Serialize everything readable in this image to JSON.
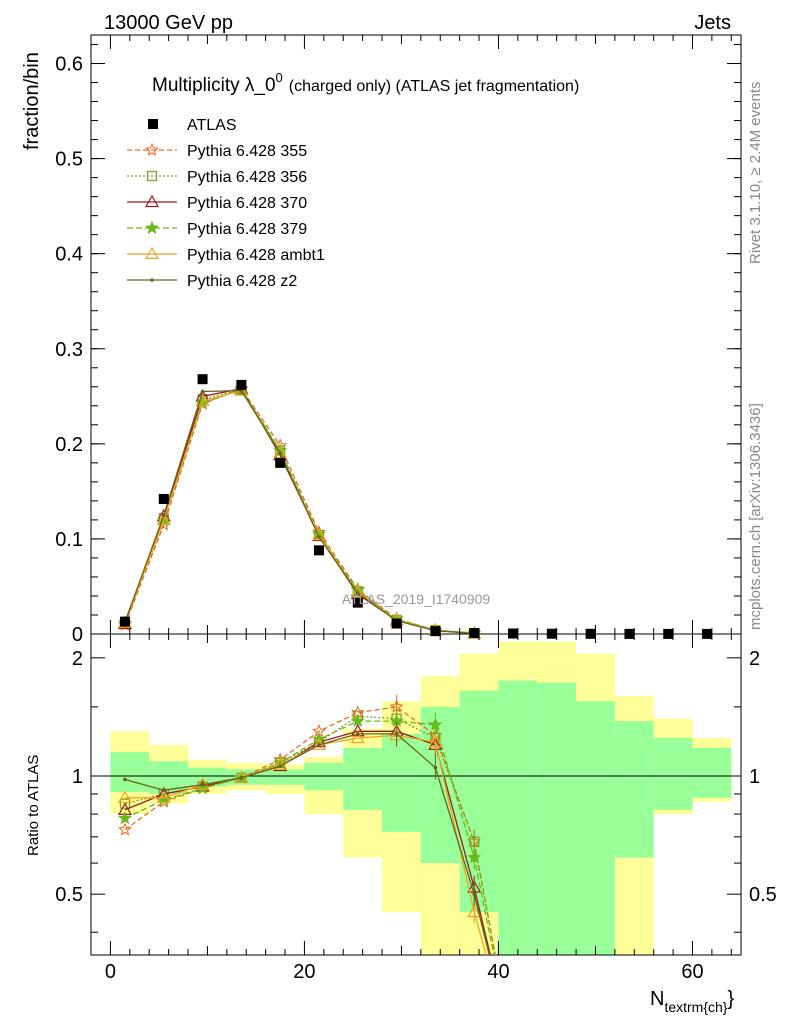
{
  "header": {
    "left": "13000 GeV pp",
    "right": "Jets"
  },
  "side_labels": {
    "rivet": "Rivet 3.1.10, ≥ 2.4M events",
    "mcplots": "mcplots.cern.ch [arXiv:1306.3436]"
  },
  "chart_data": {
    "type": "line",
    "title": "Multiplicity λ_0⁰ (charged only) (ATLAS jet fragmentation)",
    "title_main": "Multiplicity λ_0",
    "title_sup": "0",
    "title_rest": "(charged only) (ATLAS jet fragmentation)",
    "watermark": "ATLAS_2019_I1740909",
    "xlabel": "N",
    "xlabel_sub": "textrm{ch}",
    "xlabel_close": "}",
    "ylabel": "fraction/bin",
    "ratio_ylabel": "Ratio to ATLAS",
    "xlim": [
      -2,
      65
    ],
    "ylim": [
      0,
      0.63
    ],
    "ratio_ylim": [
      0.35,
      2.3
    ],
    "main_yticks": [
      0,
      0.1,
      0.2,
      0.3,
      0.4,
      0.5,
      0.6
    ],
    "main_ytick_labels": [
      "0",
      "0.1",
      "0.2",
      "0.3",
      "0.4",
      "0.5",
      "0.6"
    ],
    "xticks": [
      0,
      20,
      40,
      60
    ],
    "xtick_labels": [
      "0",
      "20",
      "40",
      "60"
    ],
    "ratio_yticks": [
      0.5,
      1,
      2
    ],
    "ratio_ytick_labels": [
      "0.5",
      "1",
      "2"
    ],
    "x": [
      1.5,
      5.5,
      9.5,
      13.5,
      17.5,
      21.5,
      25.5,
      29.5,
      33.5,
      37.5,
      41.5,
      45.5,
      49.5,
      53.5,
      57.5,
      61.5
    ],
    "bin_edges": [
      0,
      4,
      8,
      12,
      16,
      20,
      24,
      28,
      32,
      36,
      40,
      44,
      48,
      52,
      56,
      60,
      64
    ],
    "data": {
      "name": "ATLAS",
      "color": "#000000",
      "values": [
        0.013,
        0.142,
        0.268,
        0.262,
        0.18,
        0.088,
        0.033,
        0.011,
        0.003,
        0.001,
        0.0005,
        0.0003,
        0.0002,
        0.0001,
        0.0001,
        0.0001
      ]
    },
    "band_inner": [
      1.15,
      1.1,
      1.06,
      1.05,
      1.04,
      1.08,
      1.18,
      1.28,
      1.45,
      1.62,
      1.75,
      1.72,
      1.55,
      1.4,
      1.25,
      1.15,
      1.0,
      0.91,
      0.9,
      0.94,
      0.95,
      0.95,
      0.94,
      0.88,
      0.78,
      0.68,
      0.5,
      0.3,
      0.2,
      0.2,
      0.5,
      0.75,
      0.85
    ],
    "band_outer": [
      1.3,
      1.2,
      1.1,
      1.08,
      1.07,
      1.12,
      1.3,
      1.55,
      1.8,
      2.0,
      2.1,
      2.05,
      1.85,
      1.6,
      1.4,
      1.25,
      1.0,
      0.8,
      0.85,
      0.9,
      0.92,
      0.92,
      0.9,
      0.8,
      0.6,
      0.45,
      0.3,
      0.2,
      0.2,
      0.2,
      0.2,
      0.5,
      0.7
    ],
    "band_inner_hi": [
      1.15,
      1.09,
      1.05,
      1.04,
      1.04,
      1.08,
      1.18,
      1.28,
      1.5,
      1.65,
      1.75,
      1.73,
      1.55,
      1.38,
      1.25,
      1.18
    ],
    "band_inner_lo": [
      0.91,
      0.9,
      0.94,
      0.95,
      0.95,
      0.92,
      0.82,
      0.72,
      0.6,
      0.45,
      0.3,
      0.3,
      0.3,
      0.62,
      0.82,
      0.88
    ],
    "band_outer_hi": [
      1.3,
      1.2,
      1.1,
      1.08,
      1.07,
      1.12,
      1.32,
      1.55,
      1.8,
      2.05,
      2.2,
      2.2,
      2.05,
      1.6,
      1.4,
      1.25
    ],
    "band_outer_lo": [
      0.8,
      0.85,
      0.9,
      0.92,
      0.9,
      0.8,
      0.62,
      0.45,
      0.3,
      0.3,
      0.3,
      0.3,
      0.3,
      0.3,
      0.8,
      0.86
    ],
    "series": [
      {
        "name": "Pythia 6.428 355",
        "color": "#f2661a",
        "dash": "5,3",
        "marker": "star-open",
        "values": [
          0.0095,
          0.115,
          0.242,
          0.258,
          0.198,
          0.107,
          0.047,
          0.016,
          0.004,
          0.0009,
          0.0002,
          0.0001,
          0.0001,
          0.0001,
          0.0001,
          0.0001
        ],
        "ratio": [
          0.73,
          0.86,
          0.93,
          0.99,
          1.1,
          1.3,
          1.45,
          1.5,
          1.27,
          0.68,
          0.2
        ]
      },
      {
        "name": "Pythia 6.428 356",
        "color": "#7ba01a",
        "dash": "2,2",
        "marker": "square-open",
        "values": [
          0.011,
          0.122,
          0.247,
          0.257,
          0.193,
          0.104,
          0.045,
          0.015,
          0.004,
          0.0009,
          0.0002,
          0.0001,
          0.0001,
          0.0001,
          0.0001,
          0.0001
        ],
        "ratio": [
          0.85,
          0.9,
          0.94,
          0.99,
          1.08,
          1.22,
          1.42,
          1.4,
          1.25,
          0.68,
          0.2
        ]
      },
      {
        "name": "Pythia 6.428 370",
        "color": "#991a22",
        "dash": "",
        "marker": "triangle-open",
        "values": [
          0.0105,
          0.124,
          0.25,
          0.258,
          0.188,
          0.103,
          0.042,
          0.0142,
          0.0037,
          0.0005,
          0.0001,
          0.0001,
          0.0001,
          0.0001,
          0.0001,
          0.0001
        ],
        "ratio": [
          0.82,
          0.9,
          0.94,
          0.99,
          1.06,
          1.22,
          1.3,
          1.3,
          1.2,
          0.52,
          0.2
        ]
      },
      {
        "name": "Pythia 6.428 379",
        "color": "#66bb1a",
        "dash": "6,3",
        "marker": "star",
        "values": [
          0.0115,
          0.119,
          0.243,
          0.257,
          0.193,
          0.105,
          0.046,
          0.0155,
          0.004,
          0.0008,
          0.0002,
          0.0001,
          0.0001,
          0.0001,
          0.0001,
          0.0001
        ],
        "ratio": [
          0.78,
          0.87,
          0.93,
          0.99,
          1.08,
          1.24,
          1.38,
          1.38,
          1.35,
          0.62,
          0.2
        ]
      },
      {
        "name": "Pythia 6.428 ambt1",
        "color": "#f0a422",
        "dash": "",
        "marker": "triangle-open",
        "values": [
          0.012,
          0.12,
          0.245,
          0.256,
          0.19,
          0.104,
          0.044,
          0.0145,
          0.0037,
          0.0006,
          0.0001,
          0.0001,
          0.0001,
          0.0001,
          0.0001,
          0.0001
        ],
        "ratio": [
          0.88,
          0.88,
          0.95,
          0.99,
          1.07,
          1.2,
          1.25,
          1.27,
          1.22,
          0.45,
          0.2
        ]
      },
      {
        "name": "Pythia 6.428 z2",
        "color": "#66661a",
        "dash": "",
        "marker": "dot",
        "values": [
          0.0128,
          0.125,
          0.255,
          0.256,
          0.19,
          0.102,
          0.043,
          0.014,
          0.0035,
          0.0005,
          0.0001,
          0.0001,
          0.0001,
          0.0001,
          0.0001,
          0.0001
        ],
        "ratio": [
          0.98,
          0.92,
          0.95,
          0.99,
          1.06,
          1.2,
          1.28,
          1.28,
          1.05,
          0.5,
          0.2
        ]
      }
    ]
  }
}
